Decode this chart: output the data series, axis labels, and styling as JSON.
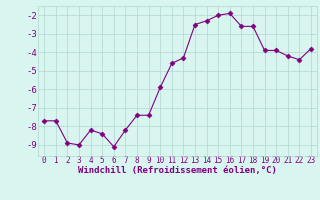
{
  "x": [
    0,
    1,
    2,
    3,
    4,
    5,
    6,
    7,
    8,
    9,
    10,
    11,
    12,
    13,
    14,
    15,
    16,
    17,
    18,
    19,
    20,
    21,
    22,
    23
  ],
  "y": [
    -7.7,
    -7.7,
    -8.9,
    -9.0,
    -8.2,
    -8.4,
    -9.1,
    -8.2,
    -7.4,
    -7.4,
    -5.9,
    -4.6,
    -4.3,
    -2.5,
    -2.3,
    -2.0,
    -1.9,
    -2.6,
    -2.6,
    -3.9,
    -3.9,
    -4.2,
    -4.4,
    -3.8
  ],
  "line_color": "#800080",
  "marker": "D",
  "markersize": 2.5,
  "linewidth": 0.8,
  "bg_color": "#d8f5f0",
  "grid_color": "#b0d8d0",
  "xlabel": "Windchill (Refroidissement éolien,°C)",
  "xlabel_color": "#800080",
  "xlabel_fontsize": 6.5,
  "tick_label_color": "#800080",
  "tick_fontsize": 5.5,
  "ytick_fontsize": 6.5,
  "ylim": [
    -9.6,
    -1.5
  ],
  "yticks": [
    -9,
    -8,
    -7,
    -6,
    -5,
    -4,
    -3,
    -2
  ],
  "ytick_labels": [
    "-9",
    "-8",
    "-7",
    "-6",
    "-5",
    "-4",
    "-3",
    "-2"
  ],
  "xlim": [
    -0.5,
    23.5
  ],
  "xticks": [
    0,
    1,
    2,
    3,
    4,
    5,
    6,
    7,
    8,
    9,
    10,
    11,
    12,
    13,
    14,
    15,
    16,
    17,
    18,
    19,
    20,
    21,
    22,
    23
  ]
}
